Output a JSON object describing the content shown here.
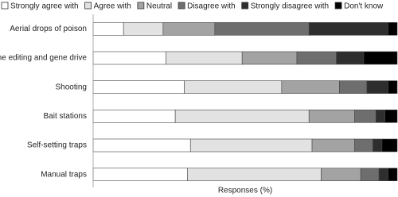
{
  "chart_data": {
    "type": "stacked-barh",
    "x_label": "Responses (%)",
    "categories": [
      "Aerial drops of poison",
      "Gene editing and gene drive",
      "Shooting",
      "Bait stations",
      "Self-setting traps",
      "Manual traps"
    ],
    "xlim": [
      0,
      100
    ],
    "legend_position": "top",
    "series": [
      {
        "name": "Strongly agree with",
        "color": "#ffffff",
        "values": [
          10,
          24,
          30,
          27,
          32,
          31
        ]
      },
      {
        "name": "Agree with",
        "color": "#e2e2e2",
        "values": [
          13,
          25,
          32,
          44,
          40,
          44
        ]
      },
      {
        "name": "Neutral",
        "color": "#a3a3a3",
        "values": [
          17,
          18,
          19,
          15,
          14,
          13
        ]
      },
      {
        "name": "Disagree with",
        "color": "#6e6e6e",
        "values": [
          31,
          13,
          9,
          7,
          6,
          6
        ]
      },
      {
        "name": "Strongly disagree with",
        "color": "#2e2e2e",
        "values": [
          26,
          9,
          7,
          3,
          3,
          3
        ]
      },
      {
        "name": "Don't know",
        "color": "#000000",
        "values": [
          3,
          11,
          3,
          4,
          5,
          3
        ]
      }
    ]
  }
}
